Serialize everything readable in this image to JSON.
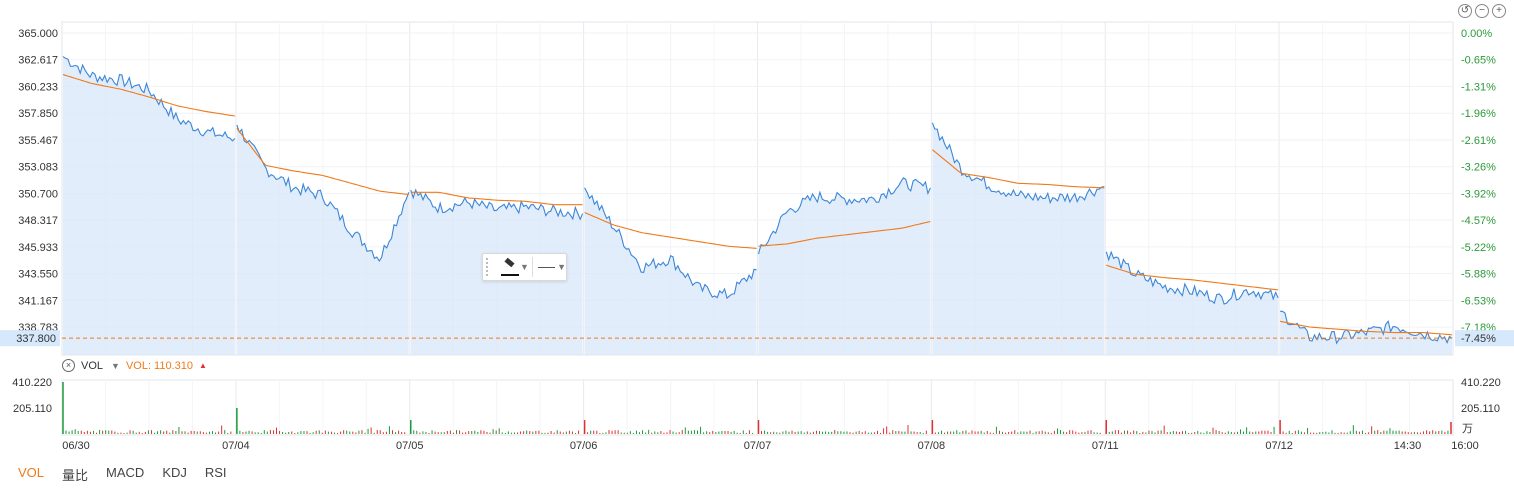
{
  "controls": {
    "reset_icon": "undo-icon",
    "zoom_out_icon": "minus-circle-icon",
    "zoom_in_icon": "plus-circle-icon"
  },
  "price_axis": {
    "left_ticks": [
      "365.000",
      "362.617",
      "360.233",
      "357.850",
      "355.467",
      "353.083",
      "350.700",
      "348.317",
      "345.933",
      "343.550",
      "341.167",
      "338.783"
    ],
    "right_ticks": [
      "0.00%",
      "-0.65%",
      "-1.31%",
      "-1.96%",
      "-2.61%",
      "-3.26%",
      "-3.92%",
      "-4.57%",
      "-5.22%",
      "-5.88%",
      "-6.53%",
      "-7.18%"
    ],
    "current_price_label": "337.800",
    "current_pct_label": "-7.45%"
  },
  "x_labels": [
    "06/30",
    "07/04",
    "07/05",
    "07/06",
    "07/07",
    "07/08",
    "07/11",
    "07/12",
    "14:30",
    "16:00"
  ],
  "vol_panel": {
    "name": "VOL",
    "value_label": "VOL: 110.310",
    "left_ticks": [
      "410.220",
      "205.110"
    ],
    "right_ticks": [
      "410.220",
      "205.110"
    ],
    "unit": "万"
  },
  "indicator_tabs": [
    "VOL",
    "量比",
    "MACD",
    "KDJ",
    "RSI"
  ],
  "colors": {
    "price": "#3b86d8",
    "avg": "#f07a1a",
    "up": "#e03030",
    "down": "#1a9a3a",
    "grid": "#eef0f4",
    "area": "#d8e7fa"
  },
  "chart_data": [
    {
      "type": "line",
      "title": "",
      "y_range": [
        336.3,
        365.0
      ],
      "reference_price": 365.0,
      "current_price": 337.8,
      "x": [
        "06/30",
        "07/04",
        "07/05",
        "07/06",
        "07/07",
        "07/08",
        "07/11",
        "07/12"
      ],
      "series": [
        {
          "values": [
            [
              362.9,
              361.2,
              360.8,
              359.9,
              357.3,
              356.2,
              355.6
            ],
            [
              356.8,
              352.9,
              351.2,
              350.5,
              347.4,
              344.9,
              350.8
            ],
            [
              351.0,
              349.4,
              349.9,
              349.2,
              349.5,
              349.1,
              348.9
            ],
            [
              351.2,
              347.8,
              344.1,
              344.9,
              342.2,
              341.6,
              343.9
            ],
            [
              345.3,
              349.1,
              350.4,
              350.2,
              350.2,
              351.6,
              351.2
            ],
            [
              357.0,
              352.9,
              351.4,
              350.5,
              350.3,
              350.4,
              351.3
            ],
            [
              345.5,
              343.5,
              342.4,
              342.0,
              341.3,
              342.1,
              341.4
            ],
            [
              340.2,
              337.9,
              337.9,
              338.3,
              338.9,
              338.2,
              337.8
            ]
          ]
        },
        {
          "values": [
            [
              361.3,
              360.5,
              360.0,
              359.3,
              358.5,
              358.0,
              357.6
            ],
            [
              356.5,
              353.2,
              352.7,
              352.3,
              351.6,
              350.9,
              350.6
            ],
            [
              350.8,
              350.8,
              350.3,
              350.1,
              350.0,
              349.7,
              349.7
            ],
            [
              349.0,
              347.9,
              347.2,
              346.8,
              346.4,
              346.0,
              345.8
            ],
            [
              346.0,
              346.2,
              346.7,
              347.0,
              347.3,
              347.6,
              348.2
            ],
            [
              354.6,
              352.5,
              352.1,
              351.6,
              351.5,
              351.3,
              351.2
            ],
            [
              344.3,
              343.5,
              343.2,
              343.0,
              342.7,
              342.4,
              342.1
            ],
            [
              339.3,
              338.8,
              338.6,
              338.4,
              338.3,
              338.3,
              338.1
            ]
          ]
        }
      ]
    },
    {
      "type": "bar",
      "title": "VOL",
      "y_range": [
        0,
        410.22
      ],
      "series": [
        {
          "name": "VOL",
          "values": [
            410.22,
            205.0,
            110.0,
            110.0,
            110.0,
            110.0,
            110.0,
            110.31
          ]
        }
      ]
    }
  ]
}
